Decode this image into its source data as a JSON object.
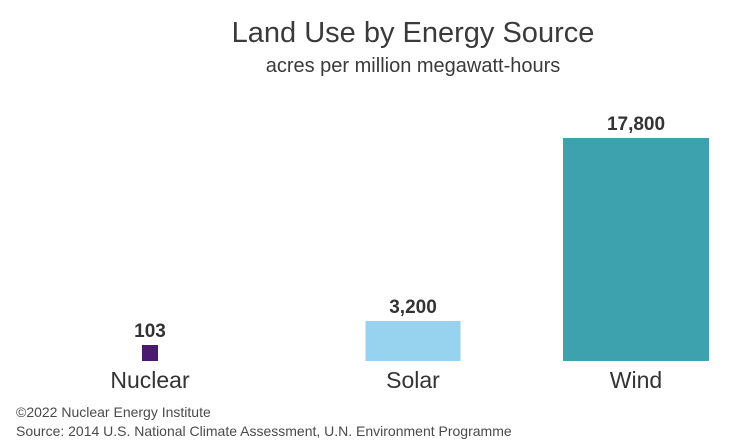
{
  "chart_data": {
    "type": "bar",
    "title": "Land Use by Energy Source",
    "subtitle": "acres per million megawatt-hours",
    "categories": [
      "Nuclear",
      "Solar",
      "Wind"
    ],
    "values": [
      103,
      3200,
      17800
    ],
    "value_labels": [
      "103",
      "3,200",
      "17,800"
    ],
    "colors": [
      "#4b1a6e",
      "#97d3ee",
      "#3ea2ae"
    ],
    "ylim": [
      0,
      19000
    ],
    "xlabel": "",
    "ylabel": "",
    "grid": false,
    "legend": "none"
  },
  "footer": {
    "copyright": "©2022 Nuclear Energy Institute",
    "source": "Source: 2014 U.S. National Climate Assessment, U.N. Environment Programme"
  }
}
